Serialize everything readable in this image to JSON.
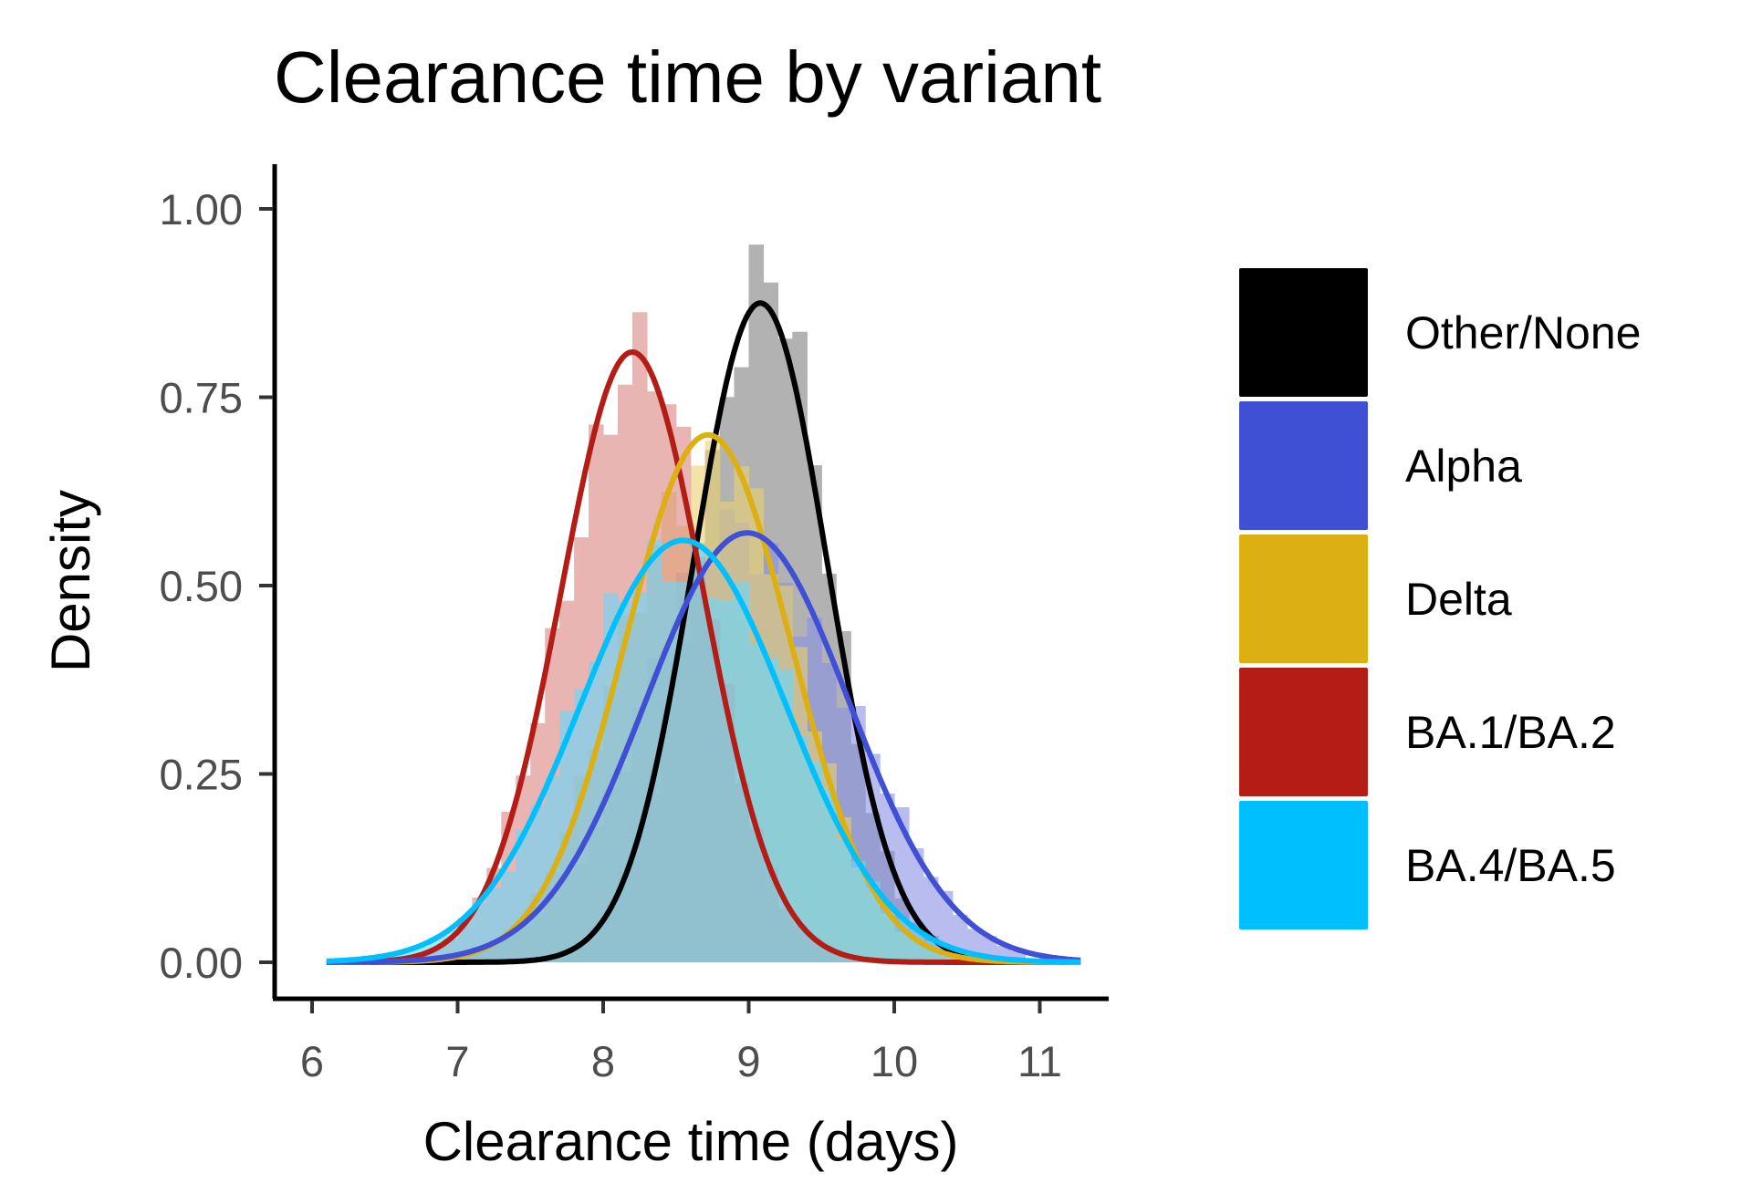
{
  "chart_data": {
    "type": "area",
    "title": "Clearance time by variant",
    "xlabel": "Clearance time (days)",
    "ylabel": "Density",
    "xlim": [
      6,
      11.3
    ],
    "ylim": [
      0,
      1.0
    ],
    "x_ticks": [
      "6",
      "7",
      "8",
      "9",
      "10",
      "11"
    ],
    "y_ticks": [
      "0.00",
      "0.25",
      "0.50",
      "0.75",
      "1.00"
    ],
    "grid": false,
    "legend_position": "right",
    "histogram_bin_width": 0.1,
    "series": [
      {
        "name": "Other/None",
        "color": "#000000",
        "hist_color": "#7f7f7f",
        "mean": 9.08,
        "sd": 0.46,
        "peak_density": 0.875,
        "x_range": [
          7.5,
          10.4
        ]
      },
      {
        "name": "Alpha",
        "color": "#4050d4",
        "hist_color": "#8a91e6",
        "mean": 8.99,
        "sd": 0.7,
        "peak_density": 0.57,
        "x_range": [
          6.5,
          10.9
        ]
      },
      {
        "name": "Delta",
        "color": "#dcb012",
        "hist_color": "#ecd270",
        "mean": 8.72,
        "sd": 0.57,
        "peak_density": 0.7,
        "x_range": [
          6.7,
          10.6
        ]
      },
      {
        "name": "BA.1/BA.2",
        "color": "#b41c16",
        "hist_color": "#d98580",
        "mean": 8.2,
        "sd": 0.49,
        "peak_density": 0.81,
        "x_range": [
          6.6,
          9.9
        ]
      },
      {
        "name": "BA.4/BA.5",
        "color": "#00bfff",
        "hist_color": "#66d9ff",
        "mean": 8.55,
        "sd": 0.71,
        "peak_density": 0.56,
        "x_range": [
          6.1,
          10.9
        ]
      }
    ]
  }
}
